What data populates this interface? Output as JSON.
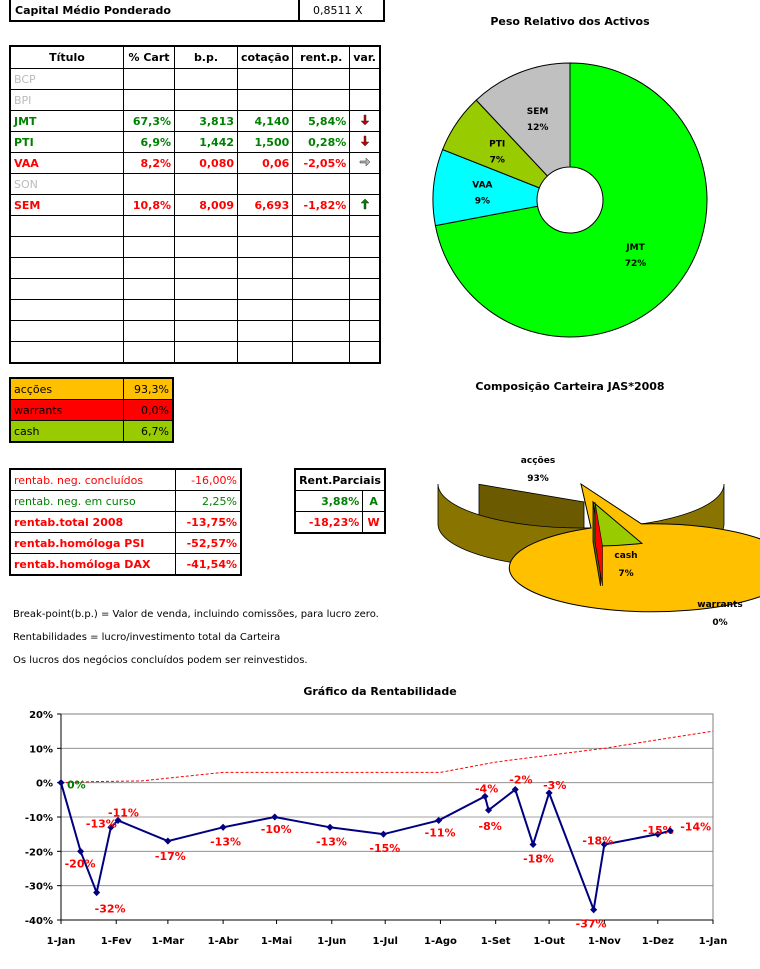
{
  "header": {
    "label": "Capital Médio Ponderado",
    "value": "0,8511 X"
  },
  "portfolio": {
    "columns": [
      "Título",
      "% Cart",
      "b.p.",
      "cotação",
      "rent.p.",
      "var."
    ],
    "rows": [
      {
        "ticker": "BCP",
        "style": "grey",
        "pct": "",
        "bp": "",
        "quote": "",
        "rent": "",
        "var": ""
      },
      {
        "ticker": "BPI",
        "style": "grey",
        "pct": "",
        "bp": "",
        "quote": "",
        "rent": "",
        "var": ""
      },
      {
        "ticker": "JMT",
        "style": "green",
        "pct": "67,3%",
        "bp": "3,813",
        "quote": "4,140",
        "rent": "5,84%",
        "var": "down"
      },
      {
        "ticker": "PTI",
        "style": "green",
        "pct": "6,9%",
        "bp": "1,442",
        "quote": "1,500",
        "rent": "0,28%",
        "var": "down"
      },
      {
        "ticker": "VAA",
        "style": "red",
        "pct": "8,2%",
        "bp": "0,080",
        "quote": "0,06",
        "rent": "-2,05%",
        "var": "right"
      },
      {
        "ticker": "SON",
        "style": "grey",
        "pct": "",
        "bp": "",
        "quote": "",
        "rent": "",
        "var": ""
      },
      {
        "ticker": "SEM",
        "style": "red",
        "pct": "10,8%",
        "bp": "8,009",
        "quote": "6,693",
        "rent": "-1,82%",
        "var": "up"
      },
      {
        "ticker": "",
        "style": "",
        "pct": "",
        "bp": "",
        "quote": "",
        "rent": "",
        "var": ""
      },
      {
        "ticker": "",
        "style": "",
        "pct": "",
        "bp": "",
        "quote": "",
        "rent": "",
        "var": ""
      },
      {
        "ticker": "",
        "style": "",
        "pct": "",
        "bp": "",
        "quote": "",
        "rent": "",
        "var": ""
      },
      {
        "ticker": "",
        "style": "",
        "pct": "",
        "bp": "",
        "quote": "",
        "rent": "",
        "var": ""
      },
      {
        "ticker": "",
        "style": "",
        "pct": "",
        "bp": "",
        "quote": "",
        "rent": "",
        "var": ""
      },
      {
        "ticker": "",
        "style": "",
        "pct": "",
        "bp": "",
        "quote": "",
        "rent": "",
        "var": ""
      },
      {
        "ticker": "",
        "style": "",
        "pct": "",
        "bp": "",
        "quote": "",
        "rent": "",
        "var": ""
      }
    ]
  },
  "allocation": [
    {
      "label": "acções",
      "value": "93,3%",
      "color": "#ffc000"
    },
    {
      "label": "warrants",
      "value": "0,0%",
      "color": "#ff0000"
    },
    {
      "label": "cash",
      "value": "6,7%",
      "color": "#99cc00"
    }
  ],
  "returns": [
    {
      "label": "rentab. neg. concluídos",
      "value": "-16,00%",
      "bold": false
    },
    {
      "label": "rentab. neg. em curso",
      "value": "2,25%",
      "bold": false
    },
    {
      "label": "rentab.total 2008",
      "value": "-13,75%",
      "bold": true
    },
    {
      "label": "rentab.homóloga PSI",
      "value": "-52,57%",
      "bold": true
    },
    {
      "label": "rentab.homóloga DAX",
      "value": "-41,54%",
      "bold": true
    }
  ],
  "partials": {
    "title": "Rent.Parciais",
    "rows": [
      {
        "value": "3,88%",
        "tag": "A",
        "color": "#008000"
      },
      {
        "value": "-18,23%",
        "tag": "W",
        "color": "#ff0000"
      }
    ]
  },
  "notes": [
    "Break-point(b.p.) = Valor de venda, incluindo comissões, para lucro zero.",
    "Rentabilidades = lucro/investimento total da Carteira",
    "Os lucros dos negócios concluídos podem ser reinvestidos."
  ],
  "colors": {
    "green": "#008000",
    "red": "#ff0000",
    "grey": "#bbbbbb",
    "line": "#000080"
  },
  "chart_data": [
    {
      "type": "pie",
      "title": "Peso Relativo dos Activos",
      "labels": [
        "JMT",
        "VAA",
        "PTI",
        "SEM"
      ],
      "values": [
        72,
        9,
        7,
        12
      ],
      "value_labels": [
        "72%",
        "9%",
        "7%",
        "12%"
      ],
      "colors": [
        "#00ff00",
        "#00ffff",
        "#99cc00",
        "#c0c0c0"
      ]
    },
    {
      "type": "pie",
      "title": "Composição Carteira JAS*2008",
      "labels": [
        "acções",
        "cash",
        "warrants"
      ],
      "values": [
        93,
        7,
        0
      ],
      "value_labels": [
        "93%",
        "7%",
        "0%"
      ],
      "colors": [
        "#ffc000",
        "#99cc00",
        "#ff0000"
      ]
    },
    {
      "type": "line",
      "title": "Gráfico da Rentabilidade",
      "x_ticks": [
        "1-Jan",
        "1-Fev",
        "1-Mar",
        "1-Abr",
        "1-Mai",
        "1-Jun",
        "1-Jul",
        "1-Ago",
        "1-Set",
        "1-Out",
        "1-Nov",
        "1-Dez",
        "1-Jan"
      ],
      "y_ticks": [
        "20%",
        "10%",
        "0%",
        "-10%",
        "-20%",
        "-30%",
        "-40%"
      ],
      "ylim": [
        -40,
        20
      ],
      "grid": true,
      "series": [
        {
          "color": "#000080",
          "x": [
            "2008-01-01",
            "2008-01-12",
            "2008-01-21",
            "2008-01-29",
            "2008-02-02",
            "2008-03-01",
            "2008-04-01",
            "2008-04-30",
            "2008-05-31",
            "2008-06-30",
            "2008-07-31",
            "2008-08-26",
            "2008-08-28",
            "2008-09-12",
            "2008-09-22",
            "2008-10-01",
            "2008-10-26",
            "2008-11-01",
            "2008-12-01",
            "2008-12-08"
          ],
          "y": [
            0,
            -20,
            -32,
            -13,
            -11,
            -17,
            -13,
            -10,
            -13,
            -15,
            -11,
            -4,
            -8,
            -2,
            -18,
            -3,
            -37,
            -18,
            -15,
            -14
          ],
          "labels": [
            "0%",
            "-20%",
            "-32%",
            "-13%",
            "-11%",
            "-17%",
            "-13%",
            "-10%",
            "-13%",
            "-15%",
            "-11%",
            "-4%",
            "-8%",
            "-2%",
            "-18%",
            "-3%",
            "-37%",
            "-18%",
            "-15%",
            "-14%"
          ]
        },
        {
          "color": "#ff0000",
          "dashed": true,
          "x": [
            "2008-01-01",
            "2008-01-18",
            "2008-02-15",
            "2008-04-01",
            "2008-06-01",
            "2008-08-01",
            "2008-09-01",
            "2008-10-01",
            "2008-11-01",
            "2008-12-01",
            "2009-01-01"
          ],
          "y": [
            0,
            0.3,
            0.5,
            3,
            3,
            3,
            6,
            8,
            10,
            12.5,
            15
          ]
        }
      ]
    }
  ]
}
